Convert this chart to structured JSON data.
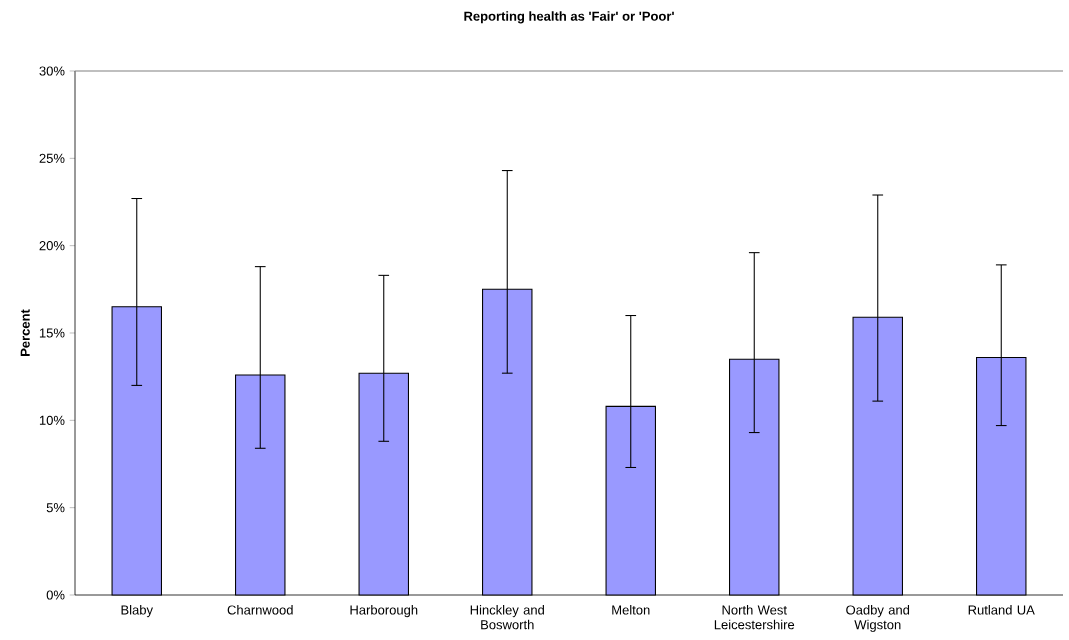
{
  "chart_data": {
    "type": "bar",
    "title": "Reporting health as 'Fair' or 'Poor'",
    "ylabel": "Percent",
    "categories": [
      "Blaby",
      "Charnwood",
      "Harborough",
      "Hinckley and Bosworth",
      "Melton",
      "North West Leicestershire",
      "Oadby and Wigston",
      "Rutland UA"
    ],
    "values": [
      16.5,
      12.6,
      12.7,
      17.5,
      10.8,
      13.5,
      15.9,
      13.6
    ],
    "errors": [
      [
        12.0,
        22.7
      ],
      [
        8.4,
        18.8
      ],
      [
        8.8,
        18.3
      ],
      [
        12.7,
        24.3
      ],
      [
        7.3,
        16.0
      ],
      [
        9.3,
        19.6
      ],
      [
        11.1,
        22.9
      ],
      [
        9.7,
        18.9
      ]
    ],
    "color": "#9999ff",
    "ylim": [
      0,
      30
    ],
    "yticks": [
      {
        "value": 0,
        "label": "0%"
      },
      {
        "value": 5,
        "label": "5%"
      },
      {
        "value": 10,
        "label": "10%"
      },
      {
        "value": 15,
        "label": "15%"
      },
      {
        "value": 20,
        "label": "20%"
      },
      {
        "value": 25,
        "label": "25%"
      },
      {
        "value": 30,
        "label": "30%"
      }
    ],
    "grid": false
  }
}
